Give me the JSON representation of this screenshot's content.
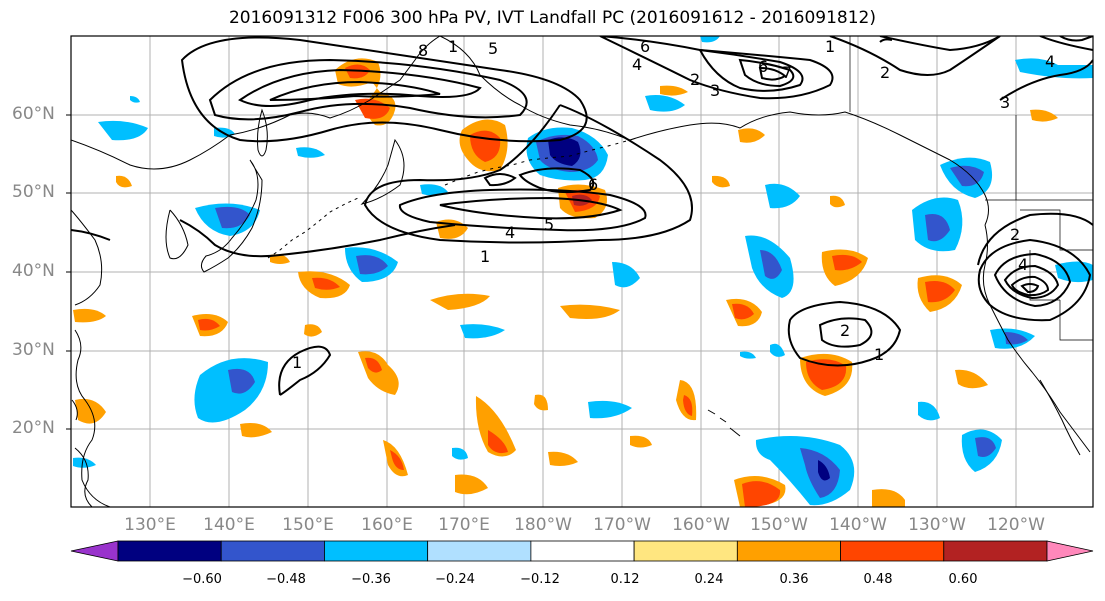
{
  "title": "2016091312 F006 300 hPa PV, IVT Landfall PC (2016091612 - 2016091812)",
  "lat_labels": [
    "60°N",
    "50°N",
    "40°N",
    "30°N",
    "20°N"
  ],
  "lon_labels": [
    "130°E",
    "140°E",
    "150°E",
    "160°E",
    "170°E",
    "180°W",
    "170°W",
    "160°W",
    "150°W",
    "140°W",
    "130°W",
    "120°W"
  ],
  "colorbar": {
    "colors": [
      "#9933cc",
      "#000080",
      "#3355cc",
      "#00bfff",
      "#b0e0ff",
      "#ffffff",
      "#ffe680",
      "#ffa000",
      "#ff4500",
      "#b22222",
      "#ff88bb"
    ],
    "tick_labels": [
      "−0.60",
      "−0.48",
      "−0.36",
      "−0.24",
      "−0.12",
      "0.12",
      "0.24",
      "0.36",
      "0.48",
      "0.60"
    ]
  },
  "contour_labels": [
    "8",
    "5",
    "6",
    "4",
    "2",
    "3",
    "1",
    "6",
    "7",
    "1",
    "2",
    "3",
    "6",
    "4",
    "4",
    "5",
    "1",
    "1",
    "2",
    "1",
    "2",
    "4"
  ]
}
